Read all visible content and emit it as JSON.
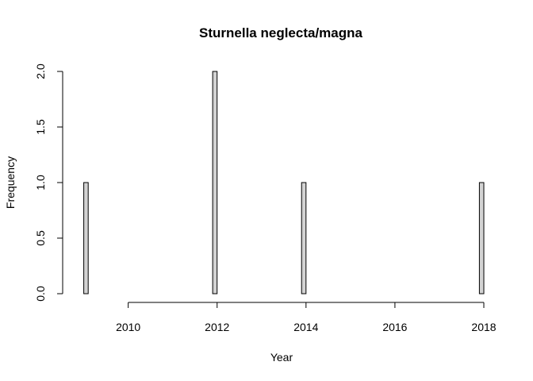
{
  "chart_data": {
    "type": "bar",
    "title": "Sturnella neglecta/magna",
    "xlabel": "Year",
    "ylabel": "Frequency",
    "xlim": [
      2008.9,
      2018.0
    ],
    "ylim": [
      0,
      2
    ],
    "x_ticks": [
      2010,
      2012,
      2014,
      2016,
      2018
    ],
    "y_ticks": [
      "0.0",
      "0.5",
      "1.0",
      "1.5",
      "2.0"
    ],
    "bin_width": 0.1,
    "bins": [
      {
        "start": 2009.0,
        "value": 1
      },
      {
        "start": 2011.9,
        "value": 2
      },
      {
        "start": 2013.9,
        "value": 1
      },
      {
        "start": 2017.9,
        "value": 1
      }
    ],
    "colors": {
      "bar_fill": "#d3d3d3",
      "bar_stroke": "#000000"
    }
  }
}
